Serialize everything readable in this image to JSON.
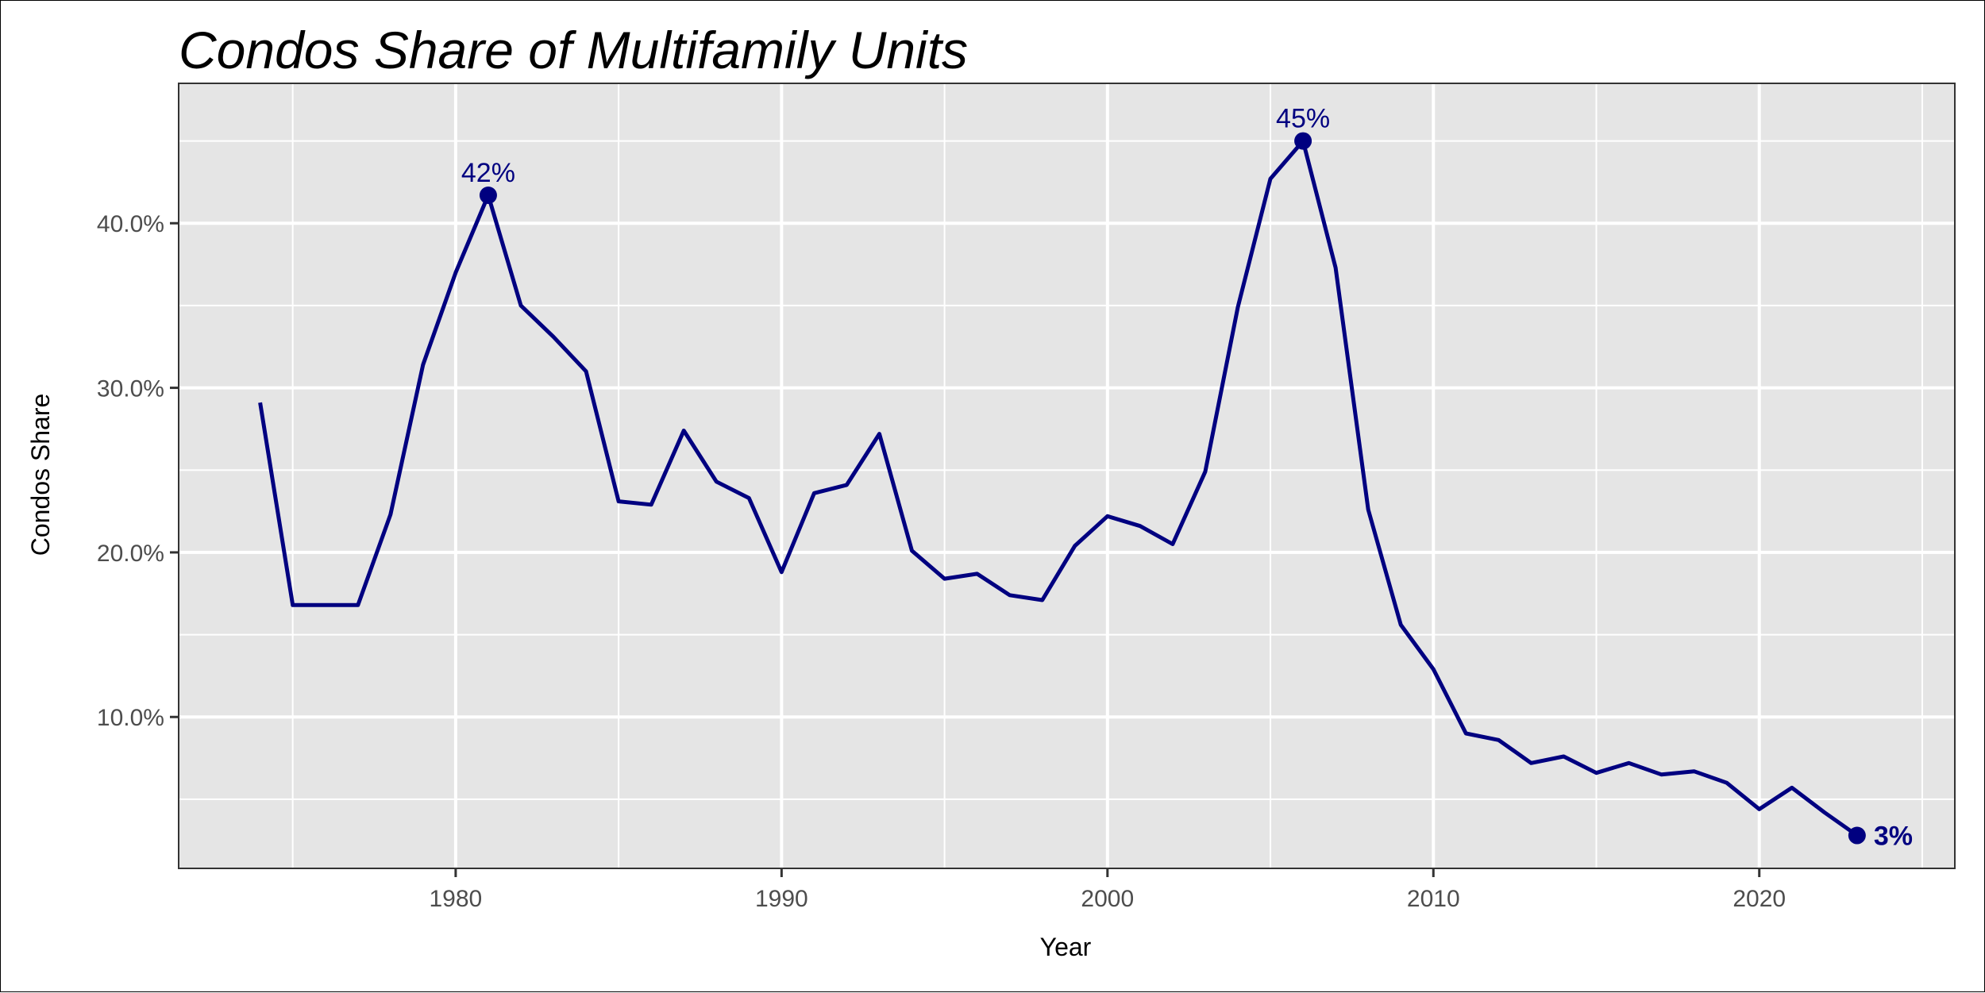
{
  "chart_data": {
    "type": "line",
    "title": "Condos Share of Multifamily Units",
    "xlabel": "Year",
    "ylabel": "Condos Share",
    "xlim": [
      1971.5,
      2026
    ],
    "ylim": [
      0.8,
      48.5
    ],
    "x_ticks": [
      1980,
      1990,
      2000,
      2010,
      2020
    ],
    "x_tick_labels": [
      "1980",
      "1990",
      "2000",
      "2010",
      "2020"
    ],
    "y_ticks": [
      10,
      20,
      30,
      40
    ],
    "y_tick_labels": [
      "10.0%",
      "20.0%",
      "30.0%",
      "40.0%"
    ],
    "grid": true,
    "line_color": "#000080",
    "panel_color": "#e5e5e5",
    "series": [
      {
        "x": [
          1974,
          1975,
          1976,
          1977,
          1978,
          1979,
          1980,
          1981,
          1982,
          1983,
          1984,
          1985,
          1986,
          1987,
          1988,
          1989,
          1990,
          1991,
          1992,
          1993,
          1994,
          1995,
          1996,
          1997,
          1998,
          1999,
          2000,
          2001,
          2002,
          2003,
          2004,
          2005,
          2006,
          2007,
          2008,
          2009,
          2010,
          2011,
          2012,
          2013,
          2014,
          2015,
          2016,
          2017,
          2018,
          2019,
          2020,
          2021,
          2022,
          2023
        ],
        "values": [
          29.1,
          16.8,
          16.8,
          16.8,
          22.3,
          31.4,
          37.0,
          41.7,
          35.0,
          33.1,
          31.0,
          23.1,
          22.9,
          27.4,
          24.3,
          23.3,
          18.8,
          23.6,
          24.1,
          27.2,
          20.1,
          18.4,
          18.7,
          17.4,
          17.1,
          20.4,
          22.2,
          21.6,
          20.5,
          24.9,
          34.9,
          42.7,
          45.0,
          37.3,
          22.6,
          15.6,
          12.9,
          9.0,
          8.6,
          7.2,
          7.6,
          6.6,
          7.2,
          6.5,
          6.7,
          6.0,
          4.4,
          5.7,
          4.2,
          2.8
        ]
      }
    ],
    "highlights": [
      {
        "x": 1981,
        "value": 41.7,
        "label": "42%"
      },
      {
        "x": 2006,
        "value": 45.0,
        "label": "45%"
      },
      {
        "x": 2023,
        "value": 2.8,
        "label": "3%"
      }
    ]
  }
}
